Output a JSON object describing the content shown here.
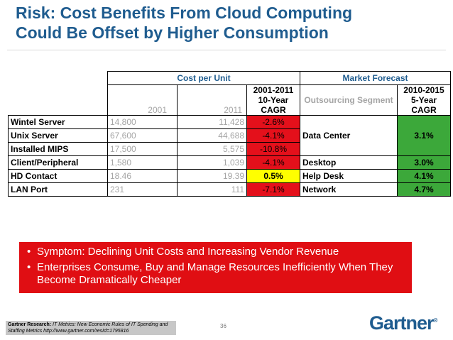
{
  "title": {
    "line1": "Risk: Cost Benefits From Cloud Computing",
    "line2": "Could Be Offset by Higher Consumption"
  },
  "table": {
    "group_cost": "Cost per Unit",
    "group_market": "Market Forecast",
    "col_2001": "2001",
    "col_2011": "2011",
    "col_cagr10": "2001-2011 10-Year CAGR",
    "col_segment": "Outsourcing Segment",
    "col_cagr5": "2010-2015 5-Year CAGR",
    "rows": [
      {
        "label": "Wintel Server",
        "v2001": "14,800",
        "v2011": "11,428",
        "cagr": "-2.6%"
      },
      {
        "label": "Unix Server",
        "v2001": "67,600",
        "v2011": "44,688",
        "cagr": "-4.1%"
      },
      {
        "label": "Installed MIPS",
        "v2001": "17,500",
        "v2011": "5,575",
        "cagr": "-10.8%"
      },
      {
        "label": "Client/Peripheral",
        "v2001": "1,580",
        "v2011": "1,039",
        "cagr": "-4.1%"
      },
      {
        "label": "HD Contact",
        "v2001": "18.46",
        "v2011": "19.39",
        "cagr": "0.5%"
      },
      {
        "label": "LAN Port",
        "v2001": "231",
        "v2011": "111",
        "cagr": "-7.1%"
      }
    ],
    "segments": [
      {
        "name": "Data Center",
        "cagr": "3.1%"
      },
      {
        "name": "Desktop",
        "cagr": "3.0%"
      },
      {
        "name": "Help Desk",
        "cagr": "4.1%"
      },
      {
        "name": "Network",
        "cagr": "4.7%"
      }
    ],
    "colors": {
      "negative": "#e4101b",
      "positive_cost": "#ffff00",
      "forecast": "#3ca83a"
    }
  },
  "bullets": [
    "Symptom: Declining Unit Costs and Increasing Vendor Revenue",
    "Enterprises Consume, Buy and Manage Resources Inefficiently When They Become Dramatically Cheaper"
  ],
  "footer": {
    "source_label": "Gartner Research:",
    "source_text": "IT Metrics: New Economic Rules of IT Spending and Staffing Metrics  http://www.gartner.com/resId=1795816",
    "page_number": "36",
    "logo": "Gartner"
  }
}
